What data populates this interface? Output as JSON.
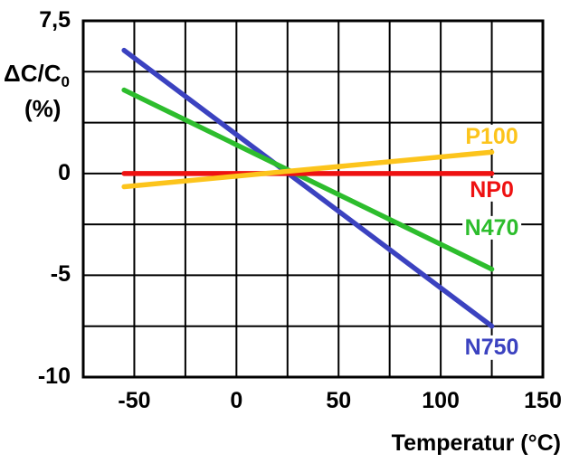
{
  "chart_data": {
    "type": "line",
    "title": "",
    "xlabel": "Temperatur (°C)",
    "ylabel_main": "ΔC/C",
    "ylabel_sub": "0",
    "ylabel_unit": "(%)",
    "xlim": [
      -75,
      150
    ],
    "ylim": [
      -10,
      7.5
    ],
    "x_grid_step": 25,
    "y_grid_step": 2.5,
    "grid": true,
    "grid_color": "#000000",
    "background_color": "#ffffff",
    "legend_position": "right-inline",
    "xticks": [
      {
        "value": -50,
        "label": "-50"
      },
      {
        "value": 0,
        "label": "0"
      },
      {
        "value": 50,
        "label": "50"
      },
      {
        "value": 100,
        "label": "100"
      },
      {
        "value": 150,
        "label": "150"
      }
    ],
    "yticks": [
      {
        "value": 7.5,
        "label": "7,5"
      },
      {
        "value": 0,
        "label": "0"
      },
      {
        "value": -5,
        "label": "-5"
      },
      {
        "value": -10,
        "label": "-10"
      }
    ],
    "series": [
      {
        "name": "P100",
        "color": "#fcc41c",
        "x": [
          -55,
          125
        ],
        "y": [
          -0.65,
          1.05
        ],
        "label_x": 125,
        "label_y": 1.8
      },
      {
        "name": "NP0",
        "color": "#ee1111",
        "x": [
          -55,
          125
        ],
        "y": [
          0.0,
          0.0
        ],
        "label_x": 125,
        "label_y": -0.8
      },
      {
        "name": "N470",
        "color": "#2dbd2d",
        "x": [
          -55,
          125
        ],
        "y": [
          4.1,
          -4.7
        ],
        "label_x": 125,
        "label_y": -2.65
      },
      {
        "name": "N750",
        "color": "#3b42c0",
        "x": [
          -55,
          125
        ],
        "y": [
          6.05,
          -7.5
        ],
        "label_x": 125,
        "label_y": -8.55
      }
    ]
  }
}
